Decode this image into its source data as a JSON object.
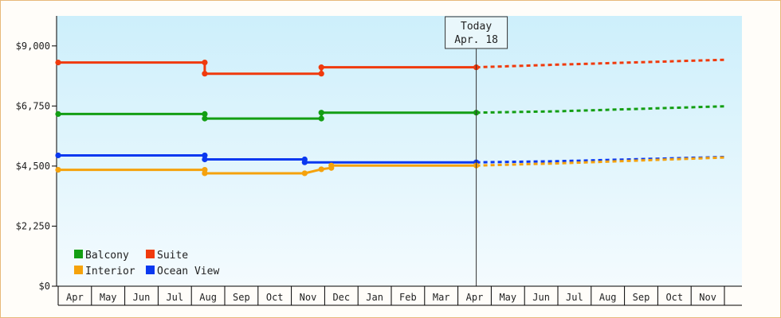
{
  "chart_data": {
    "type": "line",
    "yticks": [
      "$0",
      "$2,250",
      "$4,500",
      "$6,750",
      "$9,000"
    ],
    "ylim": [
      0,
      10125
    ],
    "months": [
      "Apr",
      "May",
      "Jun",
      "Jul",
      "Aug",
      "Sep",
      "Oct",
      "Nov",
      "Dec",
      "Jan",
      "Feb",
      "Mar",
      "Apr",
      "May",
      "Jun",
      "Jul",
      "Aug",
      "Sep",
      "Oct",
      "Nov"
    ],
    "today": {
      "line1": "Today",
      "line2": "Apr. 18",
      "month_index": 12.55
    },
    "grid": false,
    "legend_placement": "bottom-left",
    "series": [
      {
        "name": "Suite",
        "color": "#f03a0c",
        "actual": [
          [
            0,
            8380
          ],
          [
            4.4,
            8380
          ],
          [
            4.4,
            7960
          ],
          [
            7.9,
            7960
          ],
          [
            7.9,
            8200
          ],
          [
            12.55,
            8200
          ]
        ],
        "projected": [
          [
            12.55,
            8200
          ],
          [
            15,
            8300
          ],
          [
            20,
            8480
          ]
        ]
      },
      {
        "name": "Balcony",
        "color": "#139e13",
        "actual": [
          [
            0,
            6450
          ],
          [
            4.4,
            6450
          ],
          [
            4.4,
            6280
          ],
          [
            7.9,
            6280
          ],
          [
            7.9,
            6500
          ],
          [
            12.55,
            6500
          ]
        ],
        "projected": [
          [
            12.55,
            6500
          ],
          [
            15,
            6550
          ],
          [
            20,
            6740
          ]
        ]
      },
      {
        "name": "Ocean View",
        "color": "#0a38f0",
        "actual": [
          [
            0,
            4900
          ],
          [
            4.4,
            4900
          ],
          [
            4.4,
            4750
          ],
          [
            7.4,
            4750
          ],
          [
            7.4,
            4640
          ],
          [
            12.55,
            4640
          ]
        ],
        "projected": [
          [
            12.55,
            4640
          ],
          [
            15,
            4680
          ],
          [
            20,
            4840
          ]
        ]
      },
      {
        "name": "Interior",
        "color": "#f5a20c",
        "actual": [
          [
            0,
            4360
          ],
          [
            4.4,
            4360
          ],
          [
            4.4,
            4230
          ],
          [
            7.4,
            4230
          ],
          [
            7.9,
            4380
          ],
          [
            8.2,
            4430
          ],
          [
            8.2,
            4520
          ],
          [
            12.55,
            4520
          ]
        ],
        "projected": [
          [
            12.55,
            4520
          ],
          [
            15,
            4600
          ],
          [
            20,
            4820
          ]
        ]
      }
    ],
    "legend": [
      {
        "name": "Balcony",
        "color": "#139e13"
      },
      {
        "name": "Suite",
        "color": "#f03a0c"
      },
      {
        "name": "Interior",
        "color": "#f5a20c"
      },
      {
        "name": "Ocean View",
        "color": "#0a38f0"
      }
    ]
  }
}
